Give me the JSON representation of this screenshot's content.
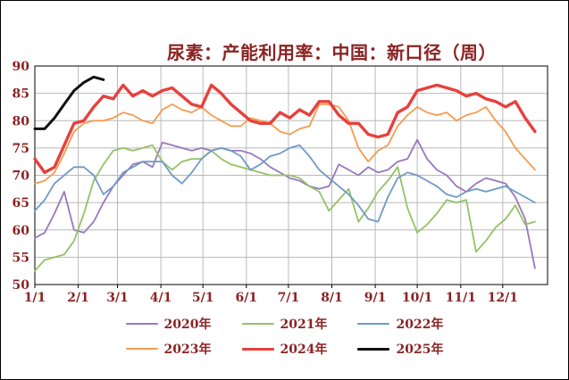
{
  "chart_data": {
    "type": "line",
    "title": "尿素：产能利用率：中国：新口径（周）",
    "x_tick_labels": [
      "1/1",
      "2/1",
      "3/1",
      "4/1",
      "5/1",
      "6/1",
      "7/1",
      "8/1",
      "9/1",
      "10/1",
      "11/1",
      "12/1"
    ],
    "y_tick_labels": [
      90,
      85,
      80,
      75,
      70,
      65,
      60,
      55,
      50
    ],
    "ylim": [
      50,
      90
    ],
    "x_unit": "weekly observations across one year (month/day)",
    "grid": true,
    "legend_position": "bottom",
    "text_color": "#8B2222",
    "grid_color": "#b9b9b9",
    "series": [
      {
        "name": "2020年",
        "color": "#9878BE",
        "line_width": 1.8,
        "values": [
          58.5,
          59.5,
          63,
          67,
          60,
          59.5,
          61.5,
          65,
          68,
          70,
          72,
          72.5,
          71.5,
          76,
          75.5,
          75,
          74.5,
          75,
          74.5,
          75,
          74.5,
          74.5,
          74,
          73,
          71.5,
          70.5,
          69.5,
          69,
          68,
          67.5,
          68,
          72,
          71,
          70,
          71.5,
          70.5,
          71,
          72.5,
          73,
          76.5,
          73,
          71,
          70,
          68,
          67,
          68.5,
          69.5,
          69,
          68.5,
          66,
          62,
          53
        ]
      },
      {
        "name": "2021年",
        "color": "#94C168",
        "line_width": 1.8,
        "values": [
          52.5,
          54.5,
          55,
          55.5,
          58,
          63,
          69,
          72,
          74.5,
          75,
          74.5,
          75,
          75.5,
          72.5,
          71,
          72.5,
          73,
          73,
          74.5,
          73,
          72,
          71.5,
          71,
          70.5,
          70,
          70,
          70,
          69.5,
          68,
          67,
          63.5,
          65.5,
          67.5,
          61.5,
          64,
          67,
          69,
          71.5,
          64,
          59.5,
          61,
          63,
          65.5,
          65,
          65.5,
          56,
          58,
          60.5,
          62,
          64.5,
          61,
          61.5
        ]
      },
      {
        "name": "2022年",
        "color": "#6F9AC6",
        "line_width": 1.8,
        "values": [
          63.5,
          65.5,
          68.5,
          70,
          71.5,
          71.5,
          70,
          66.5,
          68,
          70.5,
          71.5,
          72.5,
          72.5,
          72.5,
          70,
          68.5,
          70.5,
          73,
          74.5,
          75,
          74.5,
          73.5,
          71,
          72,
          73.5,
          74,
          75,
          75.5,
          73.5,
          71,
          69.5,
          68,
          66.5,
          64.5,
          62,
          61.5,
          66,
          69.5,
          70.5,
          70,
          69,
          68,
          66.5,
          66,
          67,
          67.5,
          67,
          67.5,
          68,
          67,
          66,
          65
        ]
      },
      {
        "name": "2023年",
        "color": "#F49C50",
        "line_width": 1.8,
        "values": [
          68.5,
          69,
          70.5,
          74,
          78,
          79.5,
          80,
          80,
          80.5,
          81.5,
          81,
          80,
          79.5,
          82,
          83,
          82,
          81.5,
          82.5,
          81,
          80,
          79,
          79,
          80.5,
          80,
          79.5,
          78,
          77.5,
          78.5,
          79,
          83,
          83,
          82.5,
          80,
          75,
          72.5,
          74.5,
          75.5,
          79,
          81,
          82.5,
          81.5,
          81,
          81.5,
          80,
          81,
          81.5,
          82.5,
          80,
          78,
          75,
          73,
          71
        ]
      },
      {
        "name": "2024年",
        "color": "#E8403C",
        "line_width": 3.4,
        "values": [
          73,
          70.5,
          71.5,
          75.5,
          79.5,
          80,
          82.5,
          84.5,
          84,
          86.5,
          84.5,
          85.5,
          84.5,
          85.5,
          86,
          84.5,
          83,
          82.5,
          86.5,
          85,
          83,
          81.5,
          80,
          79.5,
          79.5,
          81.5,
          80.5,
          82,
          81,
          83.5,
          83.5,
          81,
          79.5,
          79.5,
          77.5,
          77,
          77.5,
          81.5,
          82.5,
          85.5,
          86,
          86.5,
          86,
          85.5,
          84.5,
          85,
          84,
          83.5,
          82.5,
          83.5,
          80.5,
          78
        ]
      },
      {
        "name": "2025年",
        "color": "#111111",
        "line_width": 3,
        "values": [
          78.5,
          78.5,
          80.5,
          83,
          85.5,
          87,
          88,
          87.5
        ]
      }
    ]
  }
}
